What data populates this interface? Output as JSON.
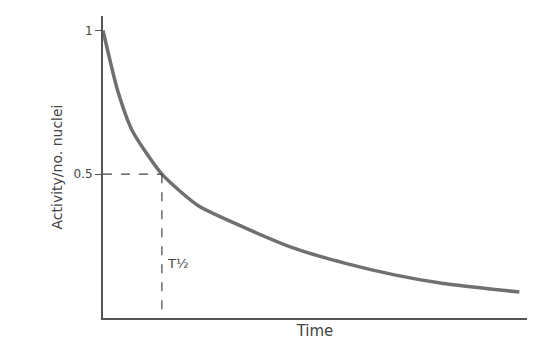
{
  "chart_data": {
    "type": "line",
    "x_label": "Time",
    "y_label": "Activity/no. nuclei",
    "x": [
      0,
      0.25,
      0.5,
      1,
      1.62,
      2.45,
      3.28,
      4.12,
      4.95,
      5.78,
      6.62,
      7.07
    ],
    "values": [
      1,
      0.79,
      0.65,
      0.5,
      0.39,
      0.31,
      0.24,
      0.19,
      0.15,
      0.12,
      0.1,
      0.09
    ],
    "color": "#707070",
    "xlim": [
      0,
      7.2
    ],
    "ylim": [
      0,
      1.05
    ],
    "yticks": [
      0.5,
      1
    ],
    "tick_labels": "y",
    "grid": false,
    "annotations": [
      {
        "text": "T½",
        "x": 1,
        "y": 0.5
      }
    ]
  }
}
